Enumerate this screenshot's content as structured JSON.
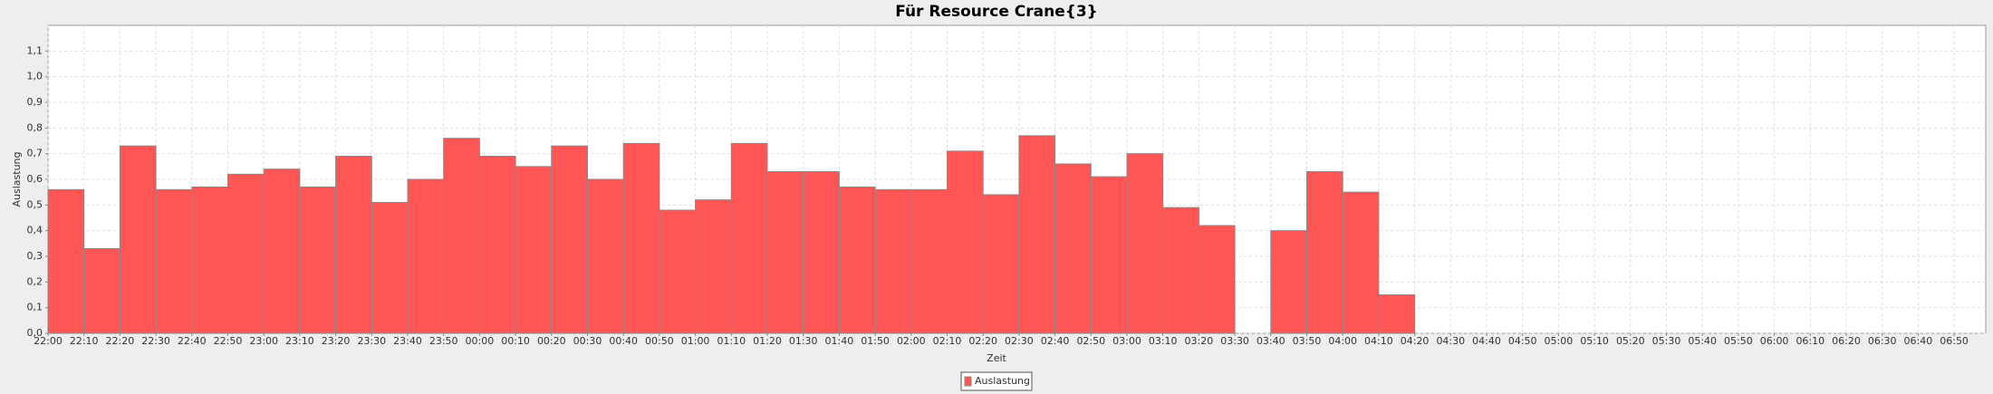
{
  "chart_data": {
    "type": "bar",
    "title": "Für Resource Crane{3}",
    "xlabel": "Zeit",
    "ylabel": "Auslastung",
    "categories": [
      "22:00",
      "22:10",
      "22:20",
      "22:30",
      "22:40",
      "22:50",
      "23:00",
      "23:10",
      "23:20",
      "23:30",
      "23:40",
      "23:50",
      "00:00",
      "00:10",
      "00:20",
      "00:30",
      "00:40",
      "00:50",
      "01:00",
      "01:10",
      "01:20",
      "01:30",
      "01:40",
      "01:50",
      "02:00",
      "02:10",
      "02:20",
      "02:30",
      "02:40",
      "02:50",
      "03:00",
      "03:10",
      "03:20",
      "03:30",
      "03:40",
      "03:50",
      "04:00",
      "04:10",
      "04:20",
      "04:30",
      "04:40",
      "04:50",
      "05:00",
      "05:10",
      "05:20",
      "05:30",
      "05:40",
      "05:50",
      "06:00",
      "06:10",
      "06:20",
      "06:30",
      "06:40",
      "06:50"
    ],
    "series": [
      {
        "name": "Auslastung",
        "color": "#ff5555",
        "values": [
          0.56,
          0.33,
          0.73,
          0.56,
          0.57,
          0.62,
          0.64,
          0.57,
          0.69,
          0.51,
          0.6,
          0.76,
          0.69,
          0.65,
          0.73,
          0.6,
          0.74,
          0.48,
          0.52,
          0.74,
          0.63,
          0.63,
          0.57,
          0.56,
          0.56,
          0.71,
          0.54,
          0.77,
          0.66,
          0.61,
          0.7,
          0.49,
          0.42,
          null,
          0.4,
          0.63,
          0.55,
          0.15,
          null,
          null,
          null,
          null,
          null,
          null,
          null,
          null,
          null,
          null,
          null,
          null,
          null,
          null,
          null,
          null
        ]
      }
    ],
    "ylim": [
      0,
      1.2
    ],
    "yticks": [
      {
        "value": 0,
        "label": "0,0"
      },
      {
        "value": 0.1,
        "label": "0,1"
      },
      {
        "value": 0.2,
        "label": "0,2"
      },
      {
        "value": 0.3,
        "label": "0,3"
      },
      {
        "value": 0.4,
        "label": "0,4"
      },
      {
        "value": 0.5,
        "label": "0,5"
      },
      {
        "value": 0.6,
        "label": "0,6"
      },
      {
        "value": 0.7,
        "label": "0,7"
      },
      {
        "value": 0.8,
        "label": "0,8"
      },
      {
        "value": 0.9,
        "label": "0,9"
      },
      {
        "value": 1.0,
        "label": "1,0"
      },
      {
        "value": 1.1,
        "label": "1,1"
      }
    ],
    "grid": true
  }
}
